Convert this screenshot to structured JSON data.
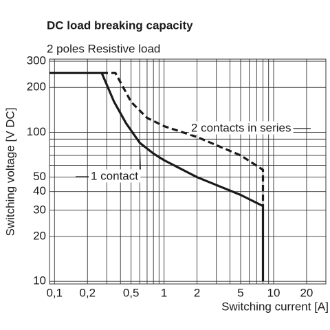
{
  "chart_data": {
    "type": "line",
    "title": "DC load breaking capacity",
    "subtitle": "2 poles Resistive load",
    "x_label": "Switching current [A]",
    "y_label": "Switching voltage [V DC]",
    "log_x": true,
    "log_y": true,
    "grid": true,
    "xlim": [
      0.09,
      30
    ],
    "ylim": [
      9.6,
      310
    ],
    "xticks": [
      {
        "value": 0.1,
        "label": "0,1"
      },
      {
        "value": 0.2,
        "label": "0,2"
      },
      {
        "value": 0.5,
        "label": "0,5"
      },
      1,
      2,
      5,
      10,
      20
    ],
    "xgrid": [
      0.1,
      0.2,
      0.3,
      0.4,
      0.5,
      0.6,
      0.7,
      0.8,
      0.9,
      1,
      2,
      3,
      4,
      5,
      6,
      7,
      8,
      9,
      10,
      20
    ],
    "yticks": [
      10,
      20,
      30,
      40,
      50,
      100,
      200,
      300
    ],
    "ygrid": [
      10,
      20,
      30,
      40,
      50,
      60,
      70,
      80,
      90,
      100,
      200,
      300
    ],
    "series": [
      {
        "name": "1 contact",
        "color": "#1a1a1a",
        "dashed": false,
        "x": [
          0.09,
          0.27,
          0.35,
          0.45,
          0.6,
          0.8,
          1,
          2,
          5,
          8,
          8
        ],
        "values": [
          250,
          250,
          160,
          115,
          85,
          72,
          65,
          50,
          38,
          32,
          10
        ]
      },
      {
        "name": "2 contacts in series",
        "color": "#1a1a1a",
        "dashed": true,
        "x": [
          0.27,
          0.36,
          0.5,
          0.7,
          1,
          2,
          5,
          8,
          8
        ],
        "values": [
          250,
          250,
          160,
          125,
          110,
          93,
          70,
          56,
          32
        ]
      }
    ]
  }
}
